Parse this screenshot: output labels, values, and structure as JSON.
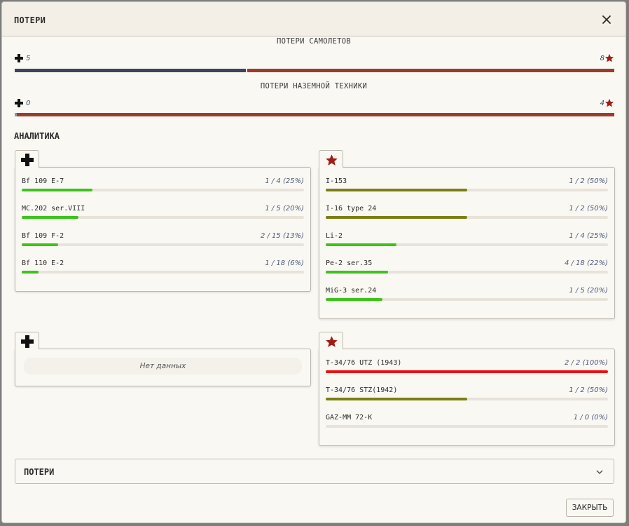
{
  "header": {
    "title": "ПОТЕРИ"
  },
  "losses": {
    "aircraft": {
      "title": "ПОТЕРИ САМОЛЕТОВ",
      "axis_count": "5",
      "allies_count": "8",
      "axis_fraction": 0.385
    },
    "ground": {
      "title": "ПОТЕРИ НАЗЕМНОЙ ТЕХНИКИ",
      "axis_count": "0",
      "allies_count": "4",
      "axis_fraction": 0.0
    }
  },
  "analytics": {
    "title": "АНАЛИТИКА",
    "axis_aircraft": [
      {
        "name": "Bf 109 E-7",
        "value": "1 / 4 (25%)",
        "fraction": 0.25,
        "color": "#3cc41a"
      },
      {
        "name": "MC.202 ser.VIII",
        "value": "1 / 5 (20%)",
        "fraction": 0.2,
        "color": "#3cc41a"
      },
      {
        "name": "Bf 109 F-2",
        "value": "2 / 15 (13%)",
        "fraction": 0.13,
        "color": "#3cc41a"
      },
      {
        "name": "Bf 110 E-2",
        "value": "1 / 18 (6%)",
        "fraction": 0.06,
        "color": "#3cc41a"
      }
    ],
    "allied_aircraft": [
      {
        "name": "I-153",
        "value": "1 / 2 (50%)",
        "fraction": 0.5,
        "color": "#7b7f14"
      },
      {
        "name": "I-16 type 24",
        "value": "1 / 2 (50%)",
        "fraction": 0.5,
        "color": "#7b7f14"
      },
      {
        "name": "Li-2",
        "value": "1 / 4 (25%)",
        "fraction": 0.25,
        "color": "#3cc41a"
      },
      {
        "name": "Pe-2 ser.35",
        "value": "4 / 18 (22%)",
        "fraction": 0.22,
        "color": "#3cc41a"
      },
      {
        "name": "MiG-3 ser.24",
        "value": "1 / 5 (20%)",
        "fraction": 0.2,
        "color": "#3cc41a"
      }
    ],
    "axis_ground_empty": "Нет данных",
    "allied_ground": [
      {
        "name": "T-34/76 UTZ (1943)",
        "value": "2 / 2 (100%)",
        "fraction": 1.0,
        "color": "#ee1111"
      },
      {
        "name": "T-34/76 STZ(1942)",
        "value": "1 / 2 (50%)",
        "fraction": 0.5,
        "color": "#7b7f14"
      },
      {
        "name": "GAZ-MM 72-K",
        "value": "1 / 0 (0%)",
        "fraction": 0.0,
        "color": "#3cc41a"
      }
    ]
  },
  "accordion": {
    "label": "ПОТЕРИ"
  },
  "footer": {
    "close_label": "ЗАКРЫТЬ"
  },
  "colors": {
    "axis": "#3d4658",
    "allies": "#9c3b2e",
    "star": "#a01c14"
  },
  "icons": {
    "axis": "balkenkreuz-icon",
    "allies": "red-star-icon",
    "close": "close-icon",
    "expand": "chevron-down-icon"
  }
}
